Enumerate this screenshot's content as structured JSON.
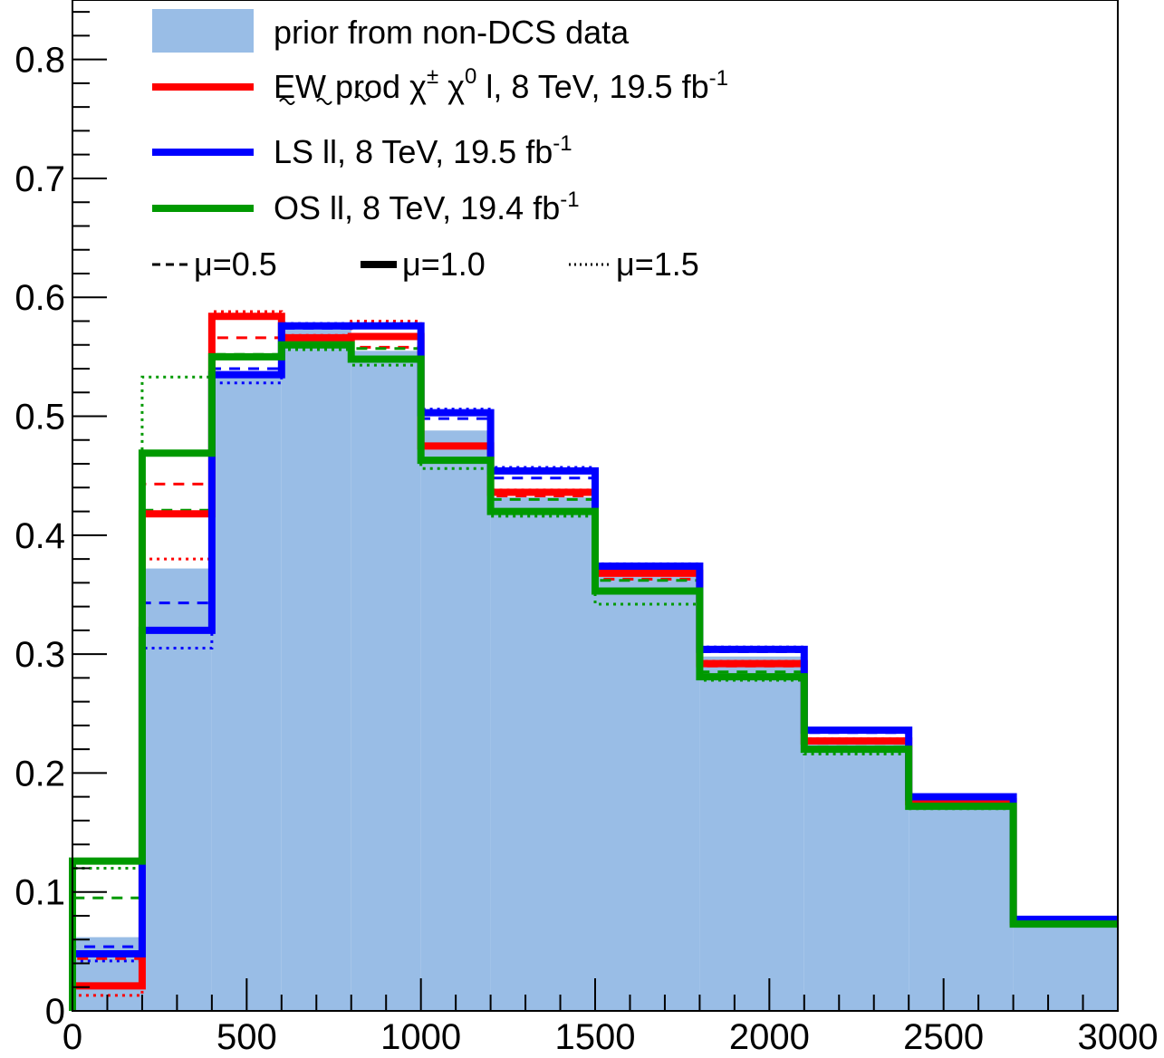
{
  "chart_data": {
    "type": "area",
    "xlim": [
      0,
      3000
    ],
    "ylim": [
      0,
      0.85
    ],
    "x_ticks": [
      0,
      500,
      1000,
      1500,
      2000,
      2500,
      3000
    ],
    "y_ticks": [
      0,
      0.1,
      0.2,
      0.3,
      0.4,
      0.5,
      0.6,
      0.7,
      0.8
    ],
    "x_tick_labels": [
      "0",
      "500",
      "1000",
      "1500",
      "2000",
      "2500",
      "3000"
    ],
    "y_tick_labels": [
      "0",
      "0.1",
      "0.2",
      "0.3",
      "0.4",
      "0.5",
      "0.6",
      "0.7",
      "0.8"
    ],
    "bin_edges": [
      0,
      200,
      400,
      600,
      800,
      1000,
      1200,
      1500,
      1800,
      2100,
      2400,
      2700,
      3000
    ],
    "prior": {
      "name": "prior from non-DCS data",
      "color": "#99bde6",
      "values": [
        0.062,
        0.372,
        0.538,
        0.575,
        0.555,
        0.488,
        0.432,
        0.365,
        0.298,
        0.228,
        0.175,
        0.076
      ]
    },
    "series": [
      {
        "key": "ew",
        "color": "#ff0000",
        "mu_0_5": [
          0.044,
          0.443,
          0.566,
          0.566,
          0.558,
          0.474,
          0.433,
          0.363,
          0.29,
          0.226,
          0.174,
          0.075
        ],
        "mu_1_0": [
          0.021,
          0.418,
          0.584,
          0.566,
          0.567,
          0.475,
          0.436,
          0.368,
          0.292,
          0.227,
          0.176,
          0.075
        ],
        "mu_1_5": [
          0.013,
          0.38,
          0.588,
          0.568,
          0.58,
          0.476,
          0.438,
          0.37,
          0.294,
          0.229,
          0.177,
          0.076
        ]
      },
      {
        "key": "ls",
        "color": "#0000ff",
        "mu_0_5": [
          0.054,
          0.343,
          0.54,
          0.574,
          0.575,
          0.498,
          0.448,
          0.372,
          0.302,
          0.234,
          0.179,
          0.077
        ],
        "mu_1_0": [
          0.048,
          0.32,
          0.535,
          0.576,
          0.576,
          0.503,
          0.454,
          0.374,
          0.304,
          0.236,
          0.18,
          0.077
        ],
        "mu_1_5": [
          0.042,
          0.305,
          0.528,
          0.578,
          0.578,
          0.506,
          0.457,
          0.376,
          0.306,
          0.237,
          0.181,
          0.077
        ]
      },
      {
        "key": "os",
        "color": "#009900",
        "mu_0_5": [
          0.095,
          0.421,
          0.552,
          0.567,
          0.557,
          0.462,
          0.43,
          0.362,
          0.285,
          0.225,
          0.174,
          0.074
        ],
        "mu_1_0": [
          0.126,
          0.469,
          0.55,
          0.56,
          0.548,
          0.463,
          0.42,
          0.353,
          0.281,
          0.22,
          0.172,
          0.073
        ],
        "mu_1_5": [
          0.12,
          0.533,
          0.55,
          0.556,
          0.543,
          0.456,
          0.416,
          0.342,
          0.278,
          0.216,
          0.17,
          0.072
        ]
      }
    ],
    "legend": {
      "placement": "top-left",
      "prior_label": "prior from non-DCS data",
      "entries": [
        {
          "key": "ew",
          "color": "#ff0000",
          "main": "EW prod ",
          "chi_pm": "χ",
          "pm": "±",
          "chi_0": "χ",
          "zero": "0",
          "lep": "l",
          "rest": ", 8 TeV, 19.5 fb",
          "sup": "-1"
        },
        {
          "key": "ls",
          "color": "#0000ff",
          "main": "LS ll, 8 TeV, 19.5 fb",
          "sup": "-1"
        },
        {
          "key": "os",
          "color": "#009900",
          "main": "OS ll, 8 TeV, 19.4 fb",
          "sup": "-1"
        }
      ],
      "style_entries": [
        {
          "style": "dashed",
          "label": "μ=0.5"
        },
        {
          "style": "solid",
          "label": "μ=1.0"
        },
        {
          "style": "dotted",
          "label": "μ=1.5"
        }
      ]
    }
  }
}
